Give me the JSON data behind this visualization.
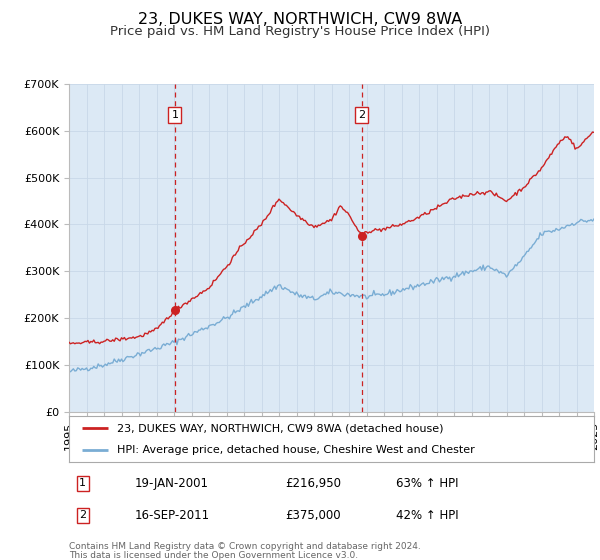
{
  "title": "23, DUKES WAY, NORTHWICH, CW9 8WA",
  "subtitle": "Price paid vs. HM Land Registry's House Price Index (HPI)",
  "title_fontsize": 11.5,
  "subtitle_fontsize": 9.5,
  "background_color": "#ffffff",
  "plot_bg_color": "#dce9f5",
  "grid_color": "#c8d8e8",
  "red_line_color": "#cc2222",
  "blue_line_color": "#7aadd4",
  "marker1_date": 2001.05,
  "marker1_value": 216950,
  "marker1_label": "1",
  "marker1_text": "19-JAN-2001",
  "marker1_price": "£216,950",
  "marker1_hpi": "63% ↑ HPI",
  "marker2_date": 2011.72,
  "marker2_value": 375000,
  "marker2_label": "2",
  "marker2_text": "16-SEP-2011",
  "marker2_price": "£375,000",
  "marker2_hpi": "42% ↑ HPI",
  "xmin": 1995,
  "xmax": 2025,
  "ymin": 0,
  "ymax": 700000,
  "yticks": [
    0,
    100000,
    200000,
    300000,
    400000,
    500000,
    600000,
    700000
  ],
  "ytick_labels": [
    "£0",
    "£100K",
    "£200K",
    "£300K",
    "£400K",
    "£500K",
    "£600K",
    "£700K"
  ],
  "legend_line1": "23, DUKES WAY, NORTHWICH, CW9 8WA (detached house)",
  "legend_line2": "HPI: Average price, detached house, Cheshire West and Chester",
  "footer1": "Contains HM Land Registry data © Crown copyright and database right 2024.",
  "footer2": "This data is licensed under the Open Government Licence v3.0."
}
